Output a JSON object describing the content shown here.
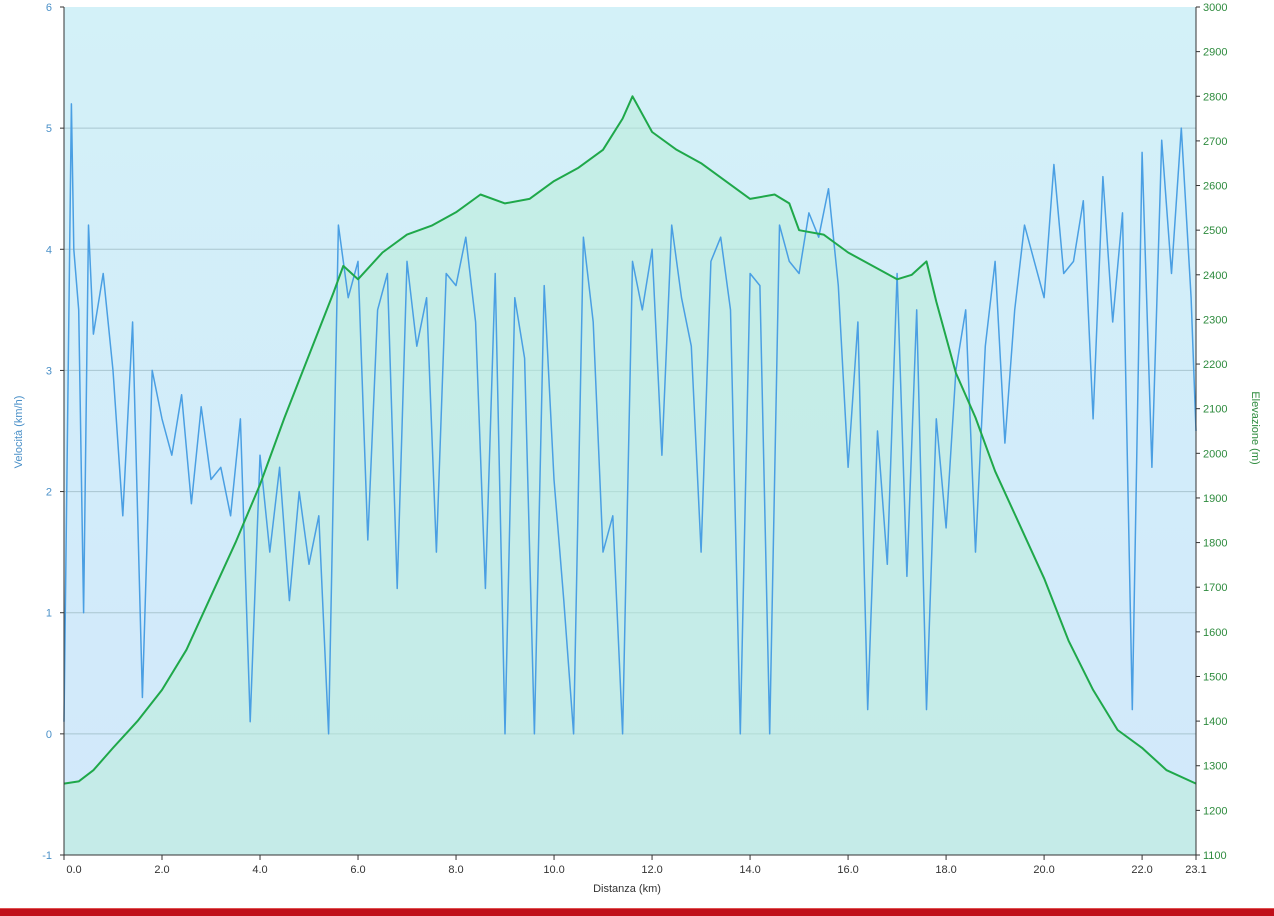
{
  "chart_data": {
    "type": "line",
    "title": "",
    "xlabel": "Distanza  (km)",
    "ylabel_left": "Velocità (km/h)",
    "ylabel_right": "Elevazione (m)",
    "xlim": [
      0,
      23.1
    ],
    "ylim_left": [
      -1,
      6
    ],
    "ylim_right": [
      1100,
      3000
    ],
    "x_ticks": [
      "0.0",
      "2.0",
      "4.0",
      "6.0",
      "8.0",
      "10.0",
      "12.0",
      "14.0",
      "16.0",
      "18.0",
      "20.0",
      "22.0",
      "23.1"
    ],
    "x_tick_values": [
      0,
      2,
      4,
      6,
      8,
      10,
      12,
      14,
      16,
      18,
      20,
      22,
      23.1
    ],
    "y_left_ticks": [
      "6",
      "5",
      "4",
      "3",
      "2",
      "1",
      "0",
      "-1"
    ],
    "y_left_tick_values": [
      6,
      5,
      4,
      3,
      2,
      1,
      0,
      -1
    ],
    "y_right_ticks": [
      "3000",
      "2900",
      "2800",
      "2700",
      "2600",
      "2500",
      "2400",
      "2300",
      "2200",
      "2100",
      "2000",
      "1900",
      "1800",
      "1700",
      "1600",
      "1500",
      "1400",
      "1300",
      "1200",
      "1100"
    ],
    "y_right_tick_values": [
      3000,
      2900,
      2800,
      2700,
      2600,
      2500,
      2400,
      2300,
      2200,
      2100,
      2000,
      1900,
      1800,
      1700,
      1600,
      1500,
      1400,
      1300,
      1200,
      1100
    ],
    "grid": "horizontal",
    "colors": {
      "speed": "#4a9fe3",
      "elevation": "#1fa84a",
      "elevation_fill": "#b9ecd8",
      "background_top": "#d3f1f8",
      "background_bottom": "#d2e8fb",
      "grid": "#a9c6d0",
      "bottom_bar": "#c0101a"
    },
    "series": [
      {
        "axis": "left",
        "x": [
          0.0,
          0.15,
          0.2,
          0.3,
          0.4,
          0.5,
          0.6,
          0.8,
          1.0,
          1.2,
          1.4,
          1.6,
          1.8,
          2.0,
          2.2,
          2.4,
          2.6,
          2.8,
          3.0,
          3.2,
          3.4,
          3.6,
          3.8,
          4.0,
          4.2,
          4.4,
          4.6,
          4.8,
          5.0,
          5.2,
          5.4,
          5.6,
          5.8,
          6.0,
          6.2,
          6.4,
          6.6,
          6.8,
          7.0,
          7.2,
          7.4,
          7.6,
          7.8,
          8.0,
          8.2,
          8.4,
          8.6,
          8.8,
          9.0,
          9.2,
          9.4,
          9.6,
          9.8,
          10.0,
          10.2,
          10.4,
          10.6,
          10.8,
          11.0,
          11.2,
          11.4,
          11.6,
          11.8,
          12.0,
          12.2,
          12.4,
          12.6,
          12.8,
          13.0,
          13.2,
          13.4,
          13.6,
          13.8,
          14.0,
          14.2,
          14.4,
          14.6,
          14.8,
          15.0,
          15.2,
          15.4,
          15.6,
          15.8,
          16.0,
          16.2,
          16.4,
          16.6,
          16.8,
          17.0,
          17.2,
          17.4,
          17.6,
          17.8,
          18.0,
          18.2,
          18.4,
          18.6,
          18.8,
          19.0,
          19.2,
          19.4,
          19.6,
          19.8,
          20.0,
          20.2,
          20.4,
          20.6,
          20.8,
          21.0,
          21.2,
          21.4,
          21.6,
          21.8,
          22.0,
          22.2,
          22.4,
          22.6,
          22.8,
          23.0,
          23.1
        ],
        "values": [
          0.1,
          5.2,
          4.0,
          3.5,
          1.0,
          4.2,
          3.3,
          3.8,
          3.0,
          1.8,
          3.4,
          0.3,
          3.0,
          2.6,
          2.3,
          2.8,
          1.9,
          2.7,
          2.1,
          2.2,
          1.8,
          2.6,
          0.1,
          2.3,
          1.5,
          2.2,
          1.1,
          2.0,
          1.4,
          1.8,
          0.0,
          4.2,
          3.6,
          3.9,
          1.6,
          3.5,
          3.8,
          1.2,
          3.9,
          3.2,
          3.6,
          1.5,
          3.8,
          3.7,
          4.1,
          3.4,
          1.2,
          3.8,
          0.0,
          3.6,
          3.1,
          0.0,
          3.7,
          2.1,
          1.1,
          0.0,
          4.1,
          3.4,
          1.5,
          1.8,
          0.0,
          3.9,
          3.5,
          4.0,
          2.3,
          4.2,
          3.6,
          3.2,
          1.5,
          3.9,
          4.1,
          3.5,
          0.0,
          3.8,
          3.7,
          0.0,
          4.2,
          3.9,
          3.8,
          4.3,
          4.1,
          4.5,
          3.7,
          2.2,
          3.4,
          0.2,
          2.5,
          1.4,
          3.8,
          1.3,
          3.5,
          0.2,
          2.6,
          1.7,
          3.0,
          3.5,
          1.5,
          3.2,
          3.9,
          2.4,
          3.5,
          4.2,
          3.9,
          3.6,
          4.7,
          3.8,
          3.9,
          4.4,
          2.6,
          4.6,
          3.4,
          4.3,
          0.2,
          4.8,
          2.2,
          4.9,
          3.8,
          5.0,
          3.6,
          2.5
        ]
      },
      {
        "axis": "right",
        "x": [
          0.0,
          0.3,
          0.6,
          1.0,
          1.5,
          2.0,
          2.5,
          3.0,
          3.5,
          4.0,
          4.5,
          5.0,
          5.5,
          5.7,
          6.0,
          6.5,
          7.0,
          7.5,
          8.0,
          8.5,
          9.0,
          9.5,
          10.0,
          10.5,
          11.0,
          11.4,
          11.6,
          12.0,
          12.5,
          13.0,
          13.5,
          14.0,
          14.5,
          14.8,
          15.0,
          15.5,
          16.0,
          16.5,
          17.0,
          17.3,
          17.6,
          17.8,
          18.2,
          18.6,
          19.0,
          19.5,
          20.0,
          20.5,
          21.0,
          21.5,
          22.0,
          22.5,
          23.1
        ],
        "values": [
          1260,
          1265,
          1290,
          1340,
          1400,
          1470,
          1560,
          1680,
          1800,
          1930,
          2080,
          2220,
          2360,
          2420,
          2390,
          2450,
          2490,
          2510,
          2540,
          2580,
          2560,
          2570,
          2610,
          2640,
          2680,
          2750,
          2800,
          2720,
          2680,
          2650,
          2610,
          2570,
          2580,
          2560,
          2500,
          2490,
          2450,
          2420,
          2390,
          2400,
          2430,
          2340,
          2180,
          2080,
          1960,
          1840,
          1720,
          1580,
          1470,
          1380,
          1340,
          1290,
          1260
        ]
      }
    ]
  }
}
